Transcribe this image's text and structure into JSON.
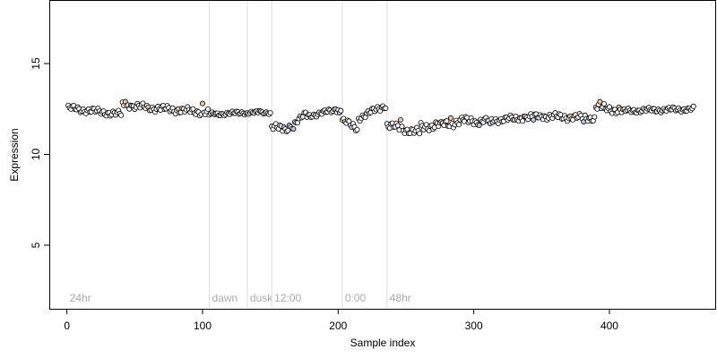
{
  "chart_data": {
    "type": "scatter",
    "title": "",
    "xlabel": "Sample index",
    "ylabel": "Expression",
    "xlim": [
      -13,
      478
    ],
    "ylim": [
      1.5,
      18.5
    ],
    "x_ticks": [
      0,
      100,
      200,
      300,
      400
    ],
    "y_ticks": [
      5,
      10,
      15
    ],
    "grid": false,
    "legend": "none",
    "colors": {
      "point_outline": "#000000",
      "point_default": "#ffffff",
      "point_blue": "#b7c9f0",
      "point_orange": "#f2c79a",
      "marker_line": "#dddddd",
      "marker_text": "#aaaaaa"
    },
    "markers": [
      {
        "label": "24hr",
        "x": 0,
        "show_line": false
      },
      {
        "label": "dawn",
        "x": 105,
        "show_line": true
      },
      {
        "label": "dusk",
        "x": 133,
        "show_line": true
      },
      {
        "label": "12:00",
        "x": 151,
        "show_line": true
      },
      {
        "label": "0:00",
        "x": 203,
        "show_line": true
      },
      {
        "label": "48hr",
        "x": 236,
        "show_line": true
      }
    ],
    "segments": [
      {
        "x_start": 1,
        "x_end": 40,
        "y_start": 12.55,
        "y_end": 12.2,
        "noise": 0.2
      },
      {
        "x_start": 41,
        "x_end": 104,
        "y_start": 12.7,
        "y_end": 12.3,
        "noise": 0.22
      },
      {
        "x_start": 105,
        "x_end": 132,
        "y_start": 12.2,
        "y_end": 12.3,
        "noise": 0.12
      },
      {
        "x_start": 133,
        "x_end": 150,
        "y_start": 12.3,
        "y_end": 12.3,
        "noise": 0.1
      },
      {
        "x_start": 151,
        "x_end": 160,
        "y_start": 11.6,
        "y_end": 11.3,
        "noise": 0.25
      },
      {
        "x_start": 161,
        "x_end": 176,
        "y_start": 11.3,
        "y_end": 12.2,
        "noise": 0.18
      },
      {
        "x_start": 177,
        "x_end": 202,
        "y_start": 12.1,
        "y_end": 12.5,
        "noise": 0.15
      },
      {
        "x_start": 203,
        "x_end": 214,
        "y_start": 11.9,
        "y_end": 11.4,
        "noise": 0.2
      },
      {
        "x_start": 215,
        "x_end": 235,
        "y_start": 12.0,
        "y_end": 12.7,
        "noise": 0.2
      },
      {
        "x_start": 236,
        "x_end": 260,
        "y_start": 11.6,
        "y_end": 11.2,
        "noise": 0.25
      },
      {
        "x_start": 261,
        "x_end": 300,
        "y_start": 11.5,
        "y_end": 11.9,
        "noise": 0.28
      },
      {
        "x_start": 301,
        "x_end": 350,
        "y_start": 11.8,
        "y_end": 12.1,
        "noise": 0.2
      },
      {
        "x_start": 351,
        "x_end": 390,
        "y_start": 12.1,
        "y_end": 12.0,
        "noise": 0.22
      },
      {
        "x_start": 391,
        "x_end": 410,
        "y_start": 12.6,
        "y_end": 12.4,
        "noise": 0.25
      },
      {
        "x_start": 411,
        "x_end": 462,
        "y_start": 12.4,
        "y_end": 12.5,
        "noise": 0.15
      }
    ],
    "highlights": [
      {
        "x": 43,
        "y": 12.9,
        "color": "orange"
      },
      {
        "x": 47,
        "y": 12.7,
        "color": "orange"
      },
      {
        "x": 60,
        "y": 12.6,
        "color": "orange"
      },
      {
        "x": 82,
        "y": 12.5,
        "color": "orange"
      },
      {
        "x": 100,
        "y": 12.8,
        "color": "orange"
      },
      {
        "x": 109,
        "y": 12.2,
        "color": "orange"
      },
      {
        "x": 142,
        "y": 12.4,
        "color": "orange"
      },
      {
        "x": 160,
        "y": 11.5,
        "color": "blue"
      },
      {
        "x": 164,
        "y": 11.6,
        "color": "blue"
      },
      {
        "x": 167,
        "y": 11.4,
        "color": "blue"
      },
      {
        "x": 198,
        "y": 12.5,
        "color": "blue"
      },
      {
        "x": 201,
        "y": 12.3,
        "color": "blue"
      },
      {
        "x": 205,
        "y": 11.8,
        "color": "orange"
      },
      {
        "x": 210,
        "y": 11.5,
        "color": "blue"
      },
      {
        "x": 232,
        "y": 12.6,
        "color": "orange"
      },
      {
        "x": 246,
        "y": 11.9,
        "color": "orange"
      },
      {
        "x": 276,
        "y": 11.8,
        "color": "orange"
      },
      {
        "x": 283,
        "y": 12.0,
        "color": "orange"
      },
      {
        "x": 292,
        "y": 11.9,
        "color": "orange"
      },
      {
        "x": 304,
        "y": 11.6,
        "color": "blue"
      },
      {
        "x": 312,
        "y": 11.7,
        "color": "blue"
      },
      {
        "x": 330,
        "y": 11.9,
        "color": "orange"
      },
      {
        "x": 337,
        "y": 12.1,
        "color": "orange"
      },
      {
        "x": 344,
        "y": 11.9,
        "color": "blue"
      },
      {
        "x": 371,
        "y": 12.1,
        "color": "orange"
      },
      {
        "x": 381,
        "y": 11.8,
        "color": "blue"
      },
      {
        "x": 385,
        "y": 12.0,
        "color": "blue"
      },
      {
        "x": 390,
        "y": 12.6,
        "color": "orange"
      },
      {
        "x": 393,
        "y": 12.9,
        "color": "orange"
      },
      {
        "x": 397,
        "y": 12.5,
        "color": "blue"
      },
      {
        "x": 407,
        "y": 12.6,
        "color": "orange"
      }
    ]
  }
}
